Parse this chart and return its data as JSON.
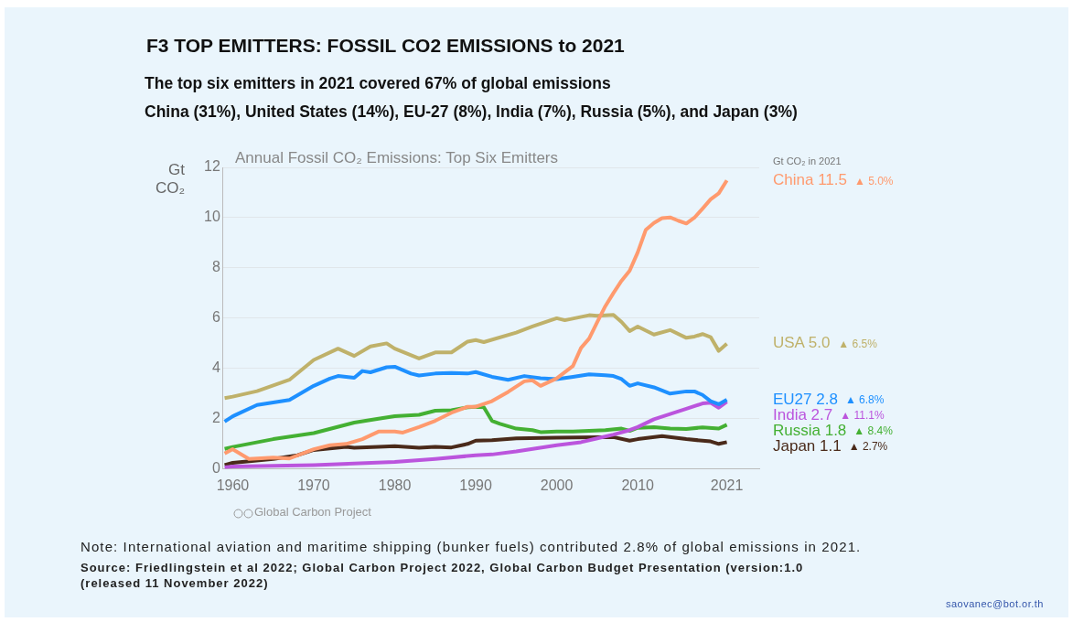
{
  "chart_data": {
    "type": "line",
    "title": "F3  TOP EMITTERS: FOSSIL CO2 EMISSIONS to 2021",
    "subtitle": "The top six emitters in 2021 covered 67% of global emissions\nChina (31%), United States (14%), EU-27 (8%), India (7%), Russia (5%), and Japan (3%)",
    "ylabel": "Gt CO₂",
    "legend_title": "Gt CO₂ in 2021",
    "xlim": [
      1958.8,
      2025
    ],
    "xticks": [
      1960,
      1970,
      1980,
      1990,
      2000,
      2010,
      2021
    ],
    "ylim": [
      0,
      12
    ],
    "yticks": [
      0,
      2,
      4,
      6,
      8,
      10,
      12
    ],
    "grid": "y",
    "line_style": "solid",
    "series": [
      {
        "name": "China",
        "color": "#ff9a6e",
        "x": [
          1959,
          1960,
          1962,
          1965,
          1967,
          1970,
          1972,
          1974,
          1976,
          1978,
          1980,
          1981,
          1983,
          1985,
          1987,
          1989,
          1990,
          1992,
          1994,
          1996,
          1997,
          1998,
          2000,
          2002,
          2003,
          2004,
          2005,
          2006,
          2007,
          2008,
          2009,
          2010,
          2011,
          2012,
          2013,
          2014,
          2015,
          2016,
          2017,
          2018,
          2019,
          2020,
          2021
        ],
        "values": [
          0.62,
          0.79,
          0.4,
          0.46,
          0.42,
          0.79,
          0.95,
          1.0,
          1.19,
          1.49,
          1.49,
          1.45,
          1.67,
          1.92,
          2.24,
          2.48,
          2.48,
          2.7,
          3.07,
          3.49,
          3.53,
          3.31,
          3.61,
          4.1,
          4.82,
          5.19,
          5.85,
          6.48,
          7.0,
          7.49,
          7.89,
          8.62,
          9.52,
          9.79,
          9.98,
          10.01,
          9.88,
          9.77,
          10.0,
          10.36,
          10.73,
          10.97,
          11.48
        ],
        "value_labels": [
          null,
          null,
          null,
          null,
          null,
          null,
          null,
          null,
          null,
          null,
          null,
          null,
          null,
          null,
          null,
          null,
          null,
          null,
          null,
          null,
          null,
          null,
          null,
          null,
          null,
          null,
          null,
          null,
          null,
          null,
          null,
          null,
          null,
          null,
          null,
          null,
          null,
          null,
          null,
          null,
          null,
          null,
          "11.5"
        ]
      },
      {
        "name": "USA",
        "color": "#bfb16a",
        "x": [
          1959,
          1960,
          1963,
          1967,
          1970,
          1973,
          1975,
          1977,
          1979,
          1980,
          1983,
          1985,
          1987,
          1989,
          1990,
          1991,
          1995,
          1997,
          2000,
          2001,
          2004,
          2005,
          2007,
          2008,
          2009,
          2010,
          2012,
          2014,
          2016,
          2017,
          2018,
          2019,
          2020,
          2021
        ],
        "values": [
          2.82,
          2.88,
          3.1,
          3.55,
          4.34,
          4.79,
          4.5,
          4.88,
          5.0,
          4.79,
          4.4,
          4.64,
          4.64,
          5.07,
          5.13,
          5.05,
          5.43,
          5.67,
          6.0,
          5.92,
          6.12,
          6.1,
          6.13,
          5.85,
          5.49,
          5.67,
          5.35,
          5.53,
          5.22,
          5.27,
          5.37,
          5.25,
          4.7,
          4.99
        ],
        "value_labels": [
          null,
          null,
          null,
          null,
          null,
          null,
          null,
          null,
          null,
          null,
          null,
          null,
          null,
          null,
          null,
          null,
          null,
          null,
          null,
          null,
          null,
          null,
          null,
          null,
          null,
          null,
          null,
          null,
          null,
          null,
          null,
          null,
          null,
          "5.0"
        ]
      },
      {
        "name": "EU27",
        "color": "#1e90ff",
        "x": [
          1959,
          1960,
          1963,
          1965,
          1967,
          1970,
          1972,
          1973,
          1975,
          1976,
          1977,
          1979,
          1980,
          1982,
          1983,
          1985,
          1987,
          1989,
          1990,
          1992,
          1994,
          1996,
          1998,
          2000,
          2002,
          2004,
          2006,
          2007,
          2008,
          2009,
          2010,
          2012,
          2014,
          2016,
          2017,
          2018,
          2019,
          2020,
          2021
        ],
        "values": [
          1.89,
          2.1,
          2.55,
          2.65,
          2.75,
          3.31,
          3.6,
          3.7,
          3.63,
          3.9,
          3.85,
          4.05,
          4.07,
          3.8,
          3.72,
          3.8,
          3.82,
          3.8,
          3.86,
          3.67,
          3.55,
          3.7,
          3.61,
          3.58,
          3.67,
          3.77,
          3.73,
          3.7,
          3.58,
          3.31,
          3.41,
          3.25,
          3.0,
          3.09,
          3.09,
          2.95,
          2.7,
          2.58,
          2.76
        ],
        "value_labels": [
          null,
          null,
          null,
          null,
          null,
          null,
          null,
          null,
          null,
          null,
          null,
          null,
          null,
          null,
          null,
          null,
          null,
          null,
          null,
          null,
          null,
          null,
          null,
          null,
          null,
          null,
          null,
          null,
          null,
          null,
          null,
          null,
          null,
          null,
          null,
          null,
          null,
          null,
          "2.8"
        ]
      },
      {
        "name": "India",
        "color": "#bb55dd",
        "x": [
          1959,
          1960,
          1970,
          1980,
          1985,
          1990,
          1992,
          1995,
          2000,
          2003,
          2005,
          2007,
          2009,
          2010,
          2012,
          2014,
          2016,
          2018,
          2019,
          2020,
          2021
        ],
        "values": [
          0.07,
          0.1,
          0.16,
          0.28,
          0.4,
          0.55,
          0.58,
          0.7,
          0.95,
          1.07,
          1.22,
          1.37,
          1.55,
          1.67,
          1.98,
          2.19,
          2.4,
          2.61,
          2.64,
          2.44,
          2.68
        ],
        "value_labels": [
          null,
          null,
          null,
          null,
          null,
          null,
          null,
          null,
          null,
          null,
          null,
          null,
          null,
          null,
          null,
          null,
          null,
          null,
          null,
          null,
          "2.7"
        ]
      },
      {
        "name": "Russia",
        "color": "#44b033",
        "x": [
          1959,
          1960,
          1965,
          1970,
          1975,
          1978,
          1980,
          1983,
          1985,
          1987,
          1989,
          1990,
          1991,
          1992,
          1993,
          1995,
          1997,
          1998,
          2000,
          2002,
          2004,
          2006,
          2008,
          2009,
          2010,
          2012,
          2014,
          2016,
          2018,
          2020,
          2021
        ],
        "values": [
          0.8,
          0.88,
          1.19,
          1.43,
          1.85,
          2.0,
          2.1,
          2.16,
          2.32,
          2.34,
          2.46,
          2.48,
          2.46,
          1.92,
          1.8,
          1.61,
          1.55,
          1.47,
          1.49,
          1.49,
          1.52,
          1.55,
          1.61,
          1.52,
          1.64,
          1.67,
          1.61,
          1.59,
          1.66,
          1.61,
          1.76
        ],
        "value_labels": [
          null,
          null,
          null,
          null,
          null,
          null,
          null,
          null,
          null,
          null,
          null,
          null,
          null,
          null,
          null,
          null,
          null,
          null,
          null,
          null,
          null,
          null,
          null,
          null,
          null,
          null,
          null,
          null,
          null,
          null,
          "1.8"
        ]
      },
      {
        "name": "Japan",
        "color": "#4a2a1a",
        "x": [
          1959,
          1960,
          1965,
          1968,
          1970,
          1972,
          1974,
          1975,
          1978,
          1980,
          1983,
          1985,
          1987,
          1989,
          1990,
          1992,
          1995,
          2000,
          2005,
          2007,
          2009,
          2010,
          2013,
          2016,
          2019,
          2020,
          2021
        ],
        "values": [
          0.16,
          0.25,
          0.4,
          0.55,
          0.76,
          0.82,
          0.88,
          0.85,
          0.88,
          0.91,
          0.85,
          0.88,
          0.86,
          1.0,
          1.13,
          1.15,
          1.22,
          1.25,
          1.27,
          1.27,
          1.13,
          1.19,
          1.31,
          1.19,
          1.1,
          1.0,
          1.07
        ],
        "value_labels": [
          null,
          null,
          null,
          null,
          null,
          null,
          null,
          null,
          null,
          null,
          null,
          null,
          null,
          null,
          null,
          null,
          null,
          null,
          null,
          null,
          null,
          null,
          null,
          null,
          null,
          null,
          "1.1"
        ]
      }
    ],
    "annotations": [
      "Annual Fossil CO₂ Emissions: Top Six Emitters",
      "Global Carbon Project",
      "Note: International aviation and maritime shipping (bunker fuels) contributed 2.8% of global emissions in 2021.",
      "Source: Friedlingstein et al 2022; Global Carbon Project 2022, Global Carbon Budget Presentation (version:1.0\n(released 11 November 2022)",
      "saovanec@bot.or.th",
      "▲ 5.0%",
      "▲ 6.5%",
      "▲ 6.8%",
      "▲ 11.1%",
      "▲ 8.4%",
      "▲ 2.7%"
    ]
  }
}
